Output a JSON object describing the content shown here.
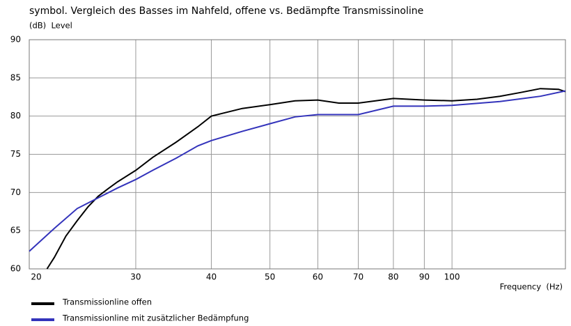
{
  "chart_data": {
    "type": "line",
    "title": "symbol. Vergleich des Basses im Nahfeld, offene vs. Bedämpfte Transmissinoline",
    "y_label": "(dB)  Level",
    "x_label": "Frequency  (Hz)",
    "x_scale": "log",
    "xlim": [
      20,
      154
    ],
    "xticks": [
      20,
      30,
      40,
      50,
      60,
      70,
      80,
      90,
      100
    ],
    "ylim": [
      60,
      90
    ],
    "yticks": [
      60,
      65,
      70,
      75,
      80,
      85,
      90
    ],
    "grid": true,
    "legend": "bottom",
    "series": [
      {
        "name": "Transmissionline offen",
        "color": "#000000",
        "x": [
          21.4,
          22,
          23,
          24,
          25,
          26,
          27,
          28,
          30,
          32,
          35,
          38,
          40,
          45,
          50,
          55,
          60,
          65,
          70,
          80,
          90,
          100,
          110,
          120,
          130,
          140,
          150,
          154
        ],
        "values": [
          60,
          61.5,
          64.3,
          66.3,
          68.1,
          69.5,
          70.5,
          71.4,
          72.9,
          74.6,
          76.6,
          78.6,
          80,
          81,
          81.5,
          82,
          82.1,
          81.7,
          81.7,
          82.3,
          82.1,
          82,
          82.2,
          82.6,
          83.1,
          83.6,
          83.5,
          83.2
        ]
      },
      {
        "name": "Transmissionline mit zusätzlicher Bedämpfung",
        "color": "#3333bb",
        "x": [
          20,
          22,
          24,
          26,
          28,
          30,
          32,
          35,
          38,
          40,
          45,
          50,
          55,
          60,
          70,
          80,
          90,
          100,
          120,
          140,
          154
        ],
        "values": [
          62.3,
          65.3,
          67.9,
          69.3,
          70.6,
          71.7,
          72.9,
          74.5,
          76.1,
          76.8,
          78,
          79,
          79.9,
          80.2,
          80.2,
          81.3,
          81.3,
          81.4,
          81.9,
          82.6,
          83.3
        ]
      }
    ]
  }
}
